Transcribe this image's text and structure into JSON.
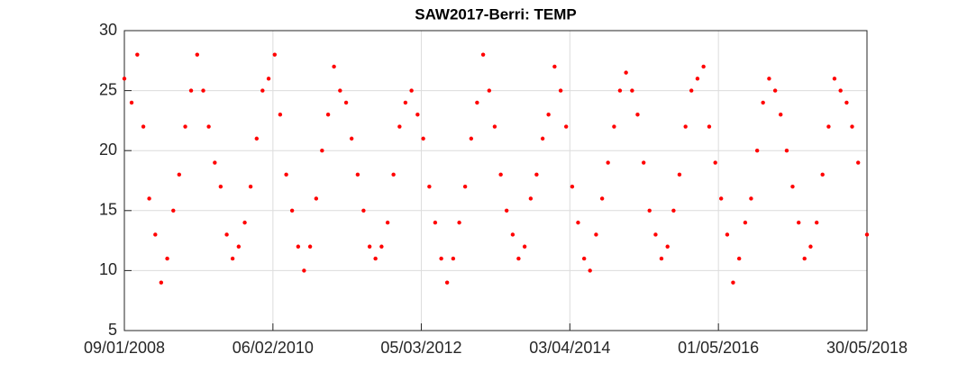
{
  "chart_data": {
    "type": "scatter",
    "title": "SAW2017-Berri: TEMP",
    "color": "#ff0000",
    "grid": true,
    "xlim": [
      "2008-01-09",
      "2018-05-30"
    ],
    "xticks": [
      {
        "value": "2008-01-09",
        "label": "09/01/2008"
      },
      {
        "value": "2010-02-06",
        "label": "06/02/2010"
      },
      {
        "value": "2012-03-05",
        "label": "05/03/2012"
      },
      {
        "value": "2014-04-03",
        "label": "03/04/2014"
      },
      {
        "value": "2016-05-01",
        "label": "01/05/2016"
      },
      {
        "value": "2018-05-30",
        "label": "30/05/2018"
      }
    ],
    "ylim": [
      5,
      30
    ],
    "yticks": [
      5,
      10,
      15,
      20,
      25,
      30
    ],
    "x": [
      "2008-01-09",
      "2008-02-15",
      "2008-03-15",
      "2008-04-15",
      "2008-05-15",
      "2008-06-15",
      "2008-07-15",
      "2008-08-15",
      "2008-09-15",
      "2008-10-15",
      "2008-11-15",
      "2008-12-15",
      "2009-01-15",
      "2009-02-15",
      "2009-03-15",
      "2009-04-15",
      "2009-05-15",
      "2009-06-15",
      "2009-07-15",
      "2009-08-15",
      "2009-09-15",
      "2009-10-15",
      "2009-11-15",
      "2009-12-15",
      "2010-01-15",
      "2010-02-15",
      "2010-03-15",
      "2010-04-15",
      "2010-05-15",
      "2010-06-15",
      "2010-07-15",
      "2010-08-15",
      "2010-09-15",
      "2010-10-15",
      "2010-11-15",
      "2010-12-15",
      "2011-01-15",
      "2011-02-15",
      "2011-03-15",
      "2011-04-15",
      "2011-05-15",
      "2011-06-15",
      "2011-07-15",
      "2011-08-15",
      "2011-09-15",
      "2011-10-15",
      "2011-11-15",
      "2011-12-15",
      "2012-01-15",
      "2012-02-15",
      "2012-03-15",
      "2012-04-15",
      "2012-05-15",
      "2012-06-15",
      "2012-07-15",
      "2012-08-15",
      "2012-09-15",
      "2012-10-15",
      "2012-11-15",
      "2012-12-15",
      "2013-01-15",
      "2013-02-15",
      "2013-03-15",
      "2013-04-15",
      "2013-05-15",
      "2013-06-15",
      "2013-07-15",
      "2013-08-15",
      "2013-09-15",
      "2013-10-15",
      "2013-11-15",
      "2013-12-15",
      "2014-01-15",
      "2014-02-15",
      "2014-03-15",
      "2014-04-15",
      "2014-05-15",
      "2014-06-15",
      "2014-07-15",
      "2014-08-15",
      "2014-09-15",
      "2014-10-15",
      "2014-11-15",
      "2014-12-15",
      "2015-01-15",
      "2015-02-15",
      "2015-03-15",
      "2015-04-15",
      "2015-05-15",
      "2015-06-15",
      "2015-07-15",
      "2015-08-15",
      "2015-09-15",
      "2015-10-15",
      "2015-11-15",
      "2015-12-15",
      "2016-01-15",
      "2016-02-15",
      "2016-03-15",
      "2016-04-15",
      "2016-05-15",
      "2016-06-15",
      "2016-07-15",
      "2016-08-15",
      "2016-09-15",
      "2016-10-15",
      "2016-11-15",
      "2016-12-15",
      "2017-01-15",
      "2017-02-15",
      "2017-03-15",
      "2017-04-15",
      "2017-05-15",
      "2017-06-15",
      "2017-07-15",
      "2017-08-15",
      "2017-09-15",
      "2017-10-15",
      "2017-11-15",
      "2017-12-15",
      "2018-01-15",
      "2018-02-15",
      "2018-03-15",
      "2018-04-15",
      "2018-05-30"
    ],
    "values": [
      26,
      24,
      28,
      22,
      16,
      13,
      9,
      11,
      15,
      18,
      22,
      25,
      28,
      25,
      22,
      19,
      17,
      13,
      11,
      12,
      14,
      17,
      21,
      25,
      26,
      28,
      23,
      18,
      15,
      12,
      10,
      12,
      16,
      20,
      23,
      27,
      25,
      24,
      21,
      18,
      15,
      12,
      11,
      12,
      14,
      18,
      22,
      24,
      25,
      23,
      21,
      17,
      14,
      11,
      9,
      11,
      14,
      17,
      21,
      24,
      28,
      25,
      22,
      18,
      15,
      13,
      11,
      12,
      16,
      18,
      21,
      23,
      27,
      25,
      22,
      17,
      14,
      11,
      10,
      13,
      16,
      19,
      22,
      25,
      26.5,
      25,
      23,
      19,
      15,
      13,
      11,
      12,
      15,
      18,
      22,
      25,
      26,
      27,
      22,
      19,
      16,
      13,
      9,
      11,
      14,
      16,
      20,
      24,
      26,
      25,
      23,
      20,
      17,
      14,
      11,
      12,
      14,
      18,
      22,
      26,
      25,
      24,
      22,
      19,
      13
    ]
  }
}
